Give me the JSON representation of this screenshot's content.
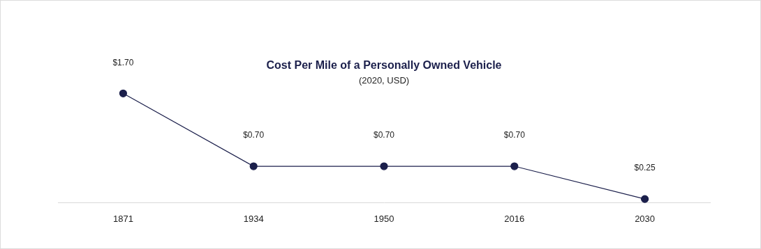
{
  "chart_data": {
    "type": "line",
    "title": "Cost Per Mile of a Personally Owned Vehicle",
    "subtitle": "(2020, USD)",
    "categories": [
      "1871",
      "1934",
      "1950",
      "2016",
      "2030"
    ],
    "values": [
      1.7,
      0.7,
      0.7,
      0.7,
      0.25
    ],
    "value_labels": [
      "$1.70",
      "$0.70",
      "$0.70",
      "$0.70",
      "$0.25"
    ],
    "color": "#1b1f4b",
    "data_labels": true,
    "tick_labels": "x",
    "grid": false
  }
}
